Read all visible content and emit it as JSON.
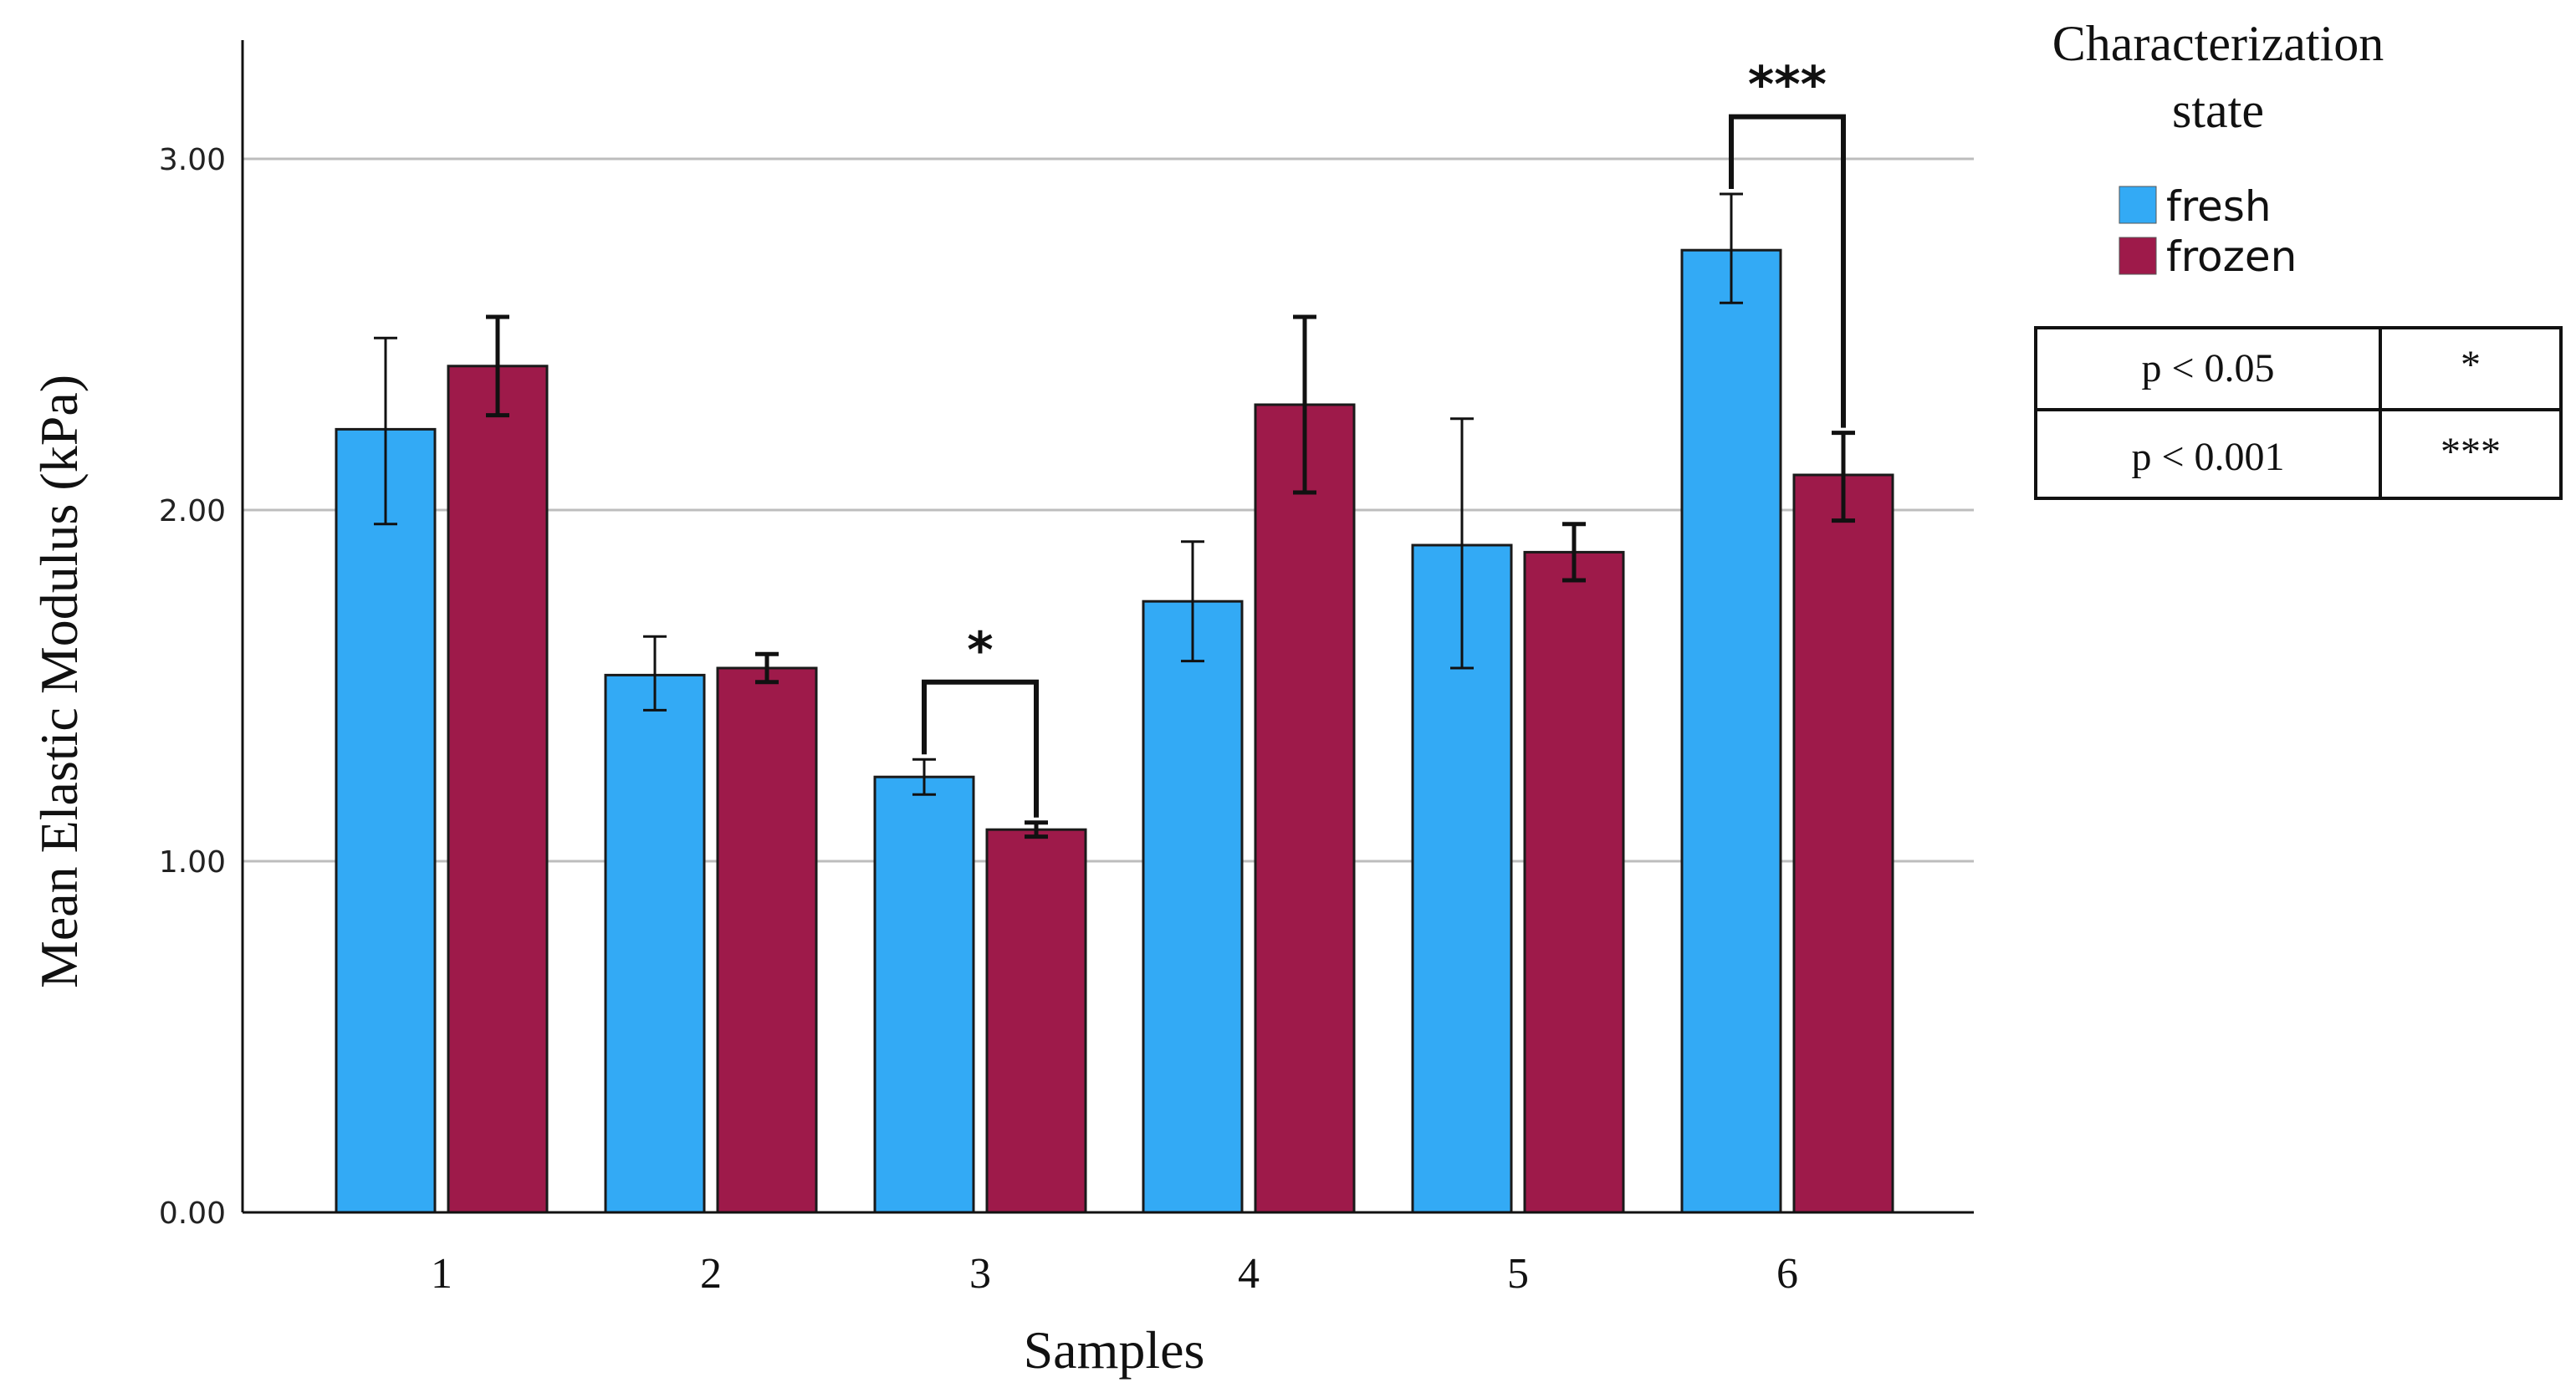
{
  "chart_data": {
    "type": "bar",
    "title": "",
    "xlabel": "Samples",
    "ylabel": "Mean Elastic Modulus (kPa)",
    "ylim": [
      0,
      3.3
    ],
    "yticks": [
      {
        "value": 0,
        "label": "0.00"
      },
      {
        "value": 1,
        "label": "1.00"
      },
      {
        "value": 2,
        "label": "2.00"
      },
      {
        "value": 3,
        "label": "3.00"
      }
    ],
    "grid": true,
    "categories": [
      "1",
      "2",
      "3",
      "4",
      "5",
      "6"
    ],
    "series": [
      {
        "name": "fresh",
        "color": "#33aaf5",
        "values": [
          2.23,
          1.53,
          1.24,
          1.74,
          1.9,
          2.74
        ],
        "error_low": [
          1.96,
          1.43,
          1.19,
          1.57,
          1.55,
          2.59
        ],
        "error_high": [
          2.49,
          1.64,
          1.29,
          1.91,
          2.26,
          2.9
        ]
      },
      {
        "name": "frozen",
        "color": "#9e1a4a",
        "values": [
          2.41,
          1.55,
          1.09,
          2.3,
          1.88,
          2.1
        ],
        "error_low": [
          2.27,
          1.51,
          1.07,
          2.05,
          1.8,
          1.97
        ],
        "error_high": [
          2.55,
          1.59,
          1.11,
          2.55,
          1.96,
          2.22
        ]
      }
    ],
    "legend": {
      "title_lines": [
        "Characterization",
        "state"
      ],
      "position": "top-right"
    },
    "significance": [
      {
        "category": "3",
        "label": "*",
        "bracket_top": 1.51
      },
      {
        "category": "6",
        "label": "***",
        "bracket_top": 3.12
      }
    ],
    "significance_table": [
      {
        "condition": "p < 0.05",
        "symbol": "*"
      },
      {
        "condition": "p < 0.001",
        "symbol": "***"
      }
    ]
  }
}
